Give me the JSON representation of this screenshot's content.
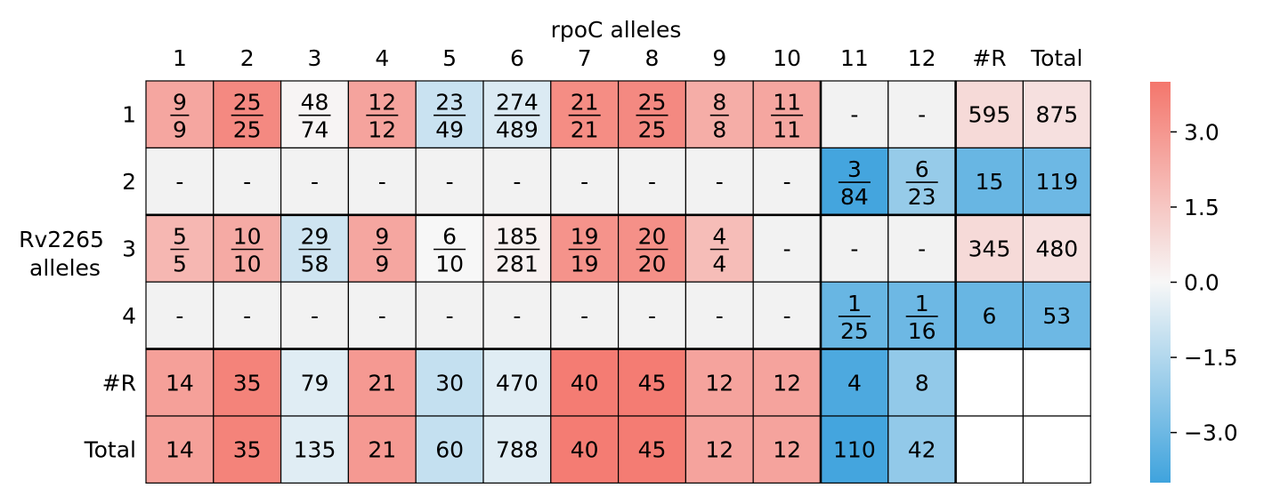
{
  "chart_data": {
    "type": "heatmap",
    "xlabel": "rpoC alleles",
    "ylabel_lines": [
      "Rv2265",
      "alleles"
    ],
    "x_categories": [
      "1",
      "2",
      "3",
      "4",
      "5",
      "6",
      "7",
      "8",
      "9",
      "10",
      "11",
      "12",
      "#R",
      "Total"
    ],
    "y_categories": [
      "1",
      "2",
      "3",
      "4",
      "#R",
      "Total"
    ],
    "cells": [
      [
        {
          "num": "9",
          "den": "9",
          "v": 2.5
        },
        {
          "num": "25",
          "den": "25",
          "v": 3.4
        },
        {
          "num": "48",
          "den": "74",
          "v": 0.1
        },
        {
          "num": "12",
          "den": "12",
          "v": 2.6
        },
        {
          "num": "23",
          "den": "49",
          "v": -1.0
        },
        {
          "num": "274",
          "den": "489",
          "v": -0.6
        },
        {
          "num": "21",
          "den": "21",
          "v": 3.3
        },
        {
          "num": "25",
          "den": "25",
          "v": 3.4
        },
        {
          "num": "8",
          "den": "8",
          "v": 2.3
        },
        {
          "num": "11",
          "den": "11",
          "v": 2.5
        },
        {
          "text": "-",
          "v": null
        },
        {
          "text": "-",
          "v": null
        },
        {
          "text": "595",
          "v": 0.9
        },
        {
          "text": "875",
          "v": 0.7
        }
      ],
      [
        {
          "text": "-",
          "v": null
        },
        {
          "text": "-",
          "v": null
        },
        {
          "text": "-",
          "v": null
        },
        {
          "text": "-",
          "v": null
        },
        {
          "text": "-",
          "v": null
        },
        {
          "text": "-",
          "v": null
        },
        {
          "text": "-",
          "v": null
        },
        {
          "text": "-",
          "v": null
        },
        {
          "text": "-",
          "v": null
        },
        {
          "text": "-",
          "v": null
        },
        {
          "num": "3",
          "den": "84",
          "v": -3.9
        },
        {
          "num": "6",
          "den": "23",
          "v": -2.1
        },
        {
          "text": "15",
          "v": -3.1
        },
        {
          "text": "119",
          "v": -3.0
        }
      ],
      [
        {
          "num": "5",
          "den": "5",
          "v": 2.0
        },
        {
          "num": "10",
          "den": "10",
          "v": 2.4
        },
        {
          "num": "29",
          "den": "58",
          "v": -0.9
        },
        {
          "num": "9",
          "den": "9",
          "v": 2.5
        },
        {
          "num": "6",
          "den": "10",
          "v": 0.0
        },
        {
          "num": "185",
          "den": "281",
          "v": 0.2
        },
        {
          "num": "19",
          "den": "19",
          "v": 3.1
        },
        {
          "num": "20",
          "den": "20",
          "v": 3.2
        },
        {
          "num": "4",
          "den": "4",
          "v": 1.8
        },
        {
          "text": "-",
          "v": null
        },
        {
          "text": "-",
          "v": null
        },
        {
          "text": "-",
          "v": null
        },
        {
          "text": "345",
          "v": 0.9
        },
        {
          "text": "480",
          "v": 0.7
        }
      ],
      [
        {
          "text": "-",
          "v": null
        },
        {
          "text": "-",
          "v": null
        },
        {
          "text": "-",
          "v": null
        },
        {
          "text": "-",
          "v": null
        },
        {
          "text": "-",
          "v": null
        },
        {
          "text": "-",
          "v": null
        },
        {
          "text": "-",
          "v": null
        },
        {
          "text": "-",
          "v": null
        },
        {
          "text": "-",
          "v": null
        },
        {
          "text": "-",
          "v": null
        },
        {
          "num": "1",
          "den": "25",
          "v": -3.1
        },
        {
          "num": "1",
          "den": "16",
          "v": -3.0
        },
        {
          "text": "6",
          "v": -3.1
        },
        {
          "text": "53",
          "v": -3.0
        }
      ],
      [
        {
          "text": "14",
          "v": 2.7
        },
        {
          "text": "35",
          "v": 3.6
        },
        {
          "text": "79",
          "v": -0.5
        },
        {
          "text": "21",
          "v": 2.9
        },
        {
          "text": "30",
          "v": -1.1
        },
        {
          "text": "470",
          "v": -0.5
        },
        {
          "text": "40",
          "v": 3.8
        },
        {
          "text": "45",
          "v": 3.8
        },
        {
          "text": "12",
          "v": 2.6
        },
        {
          "text": "12",
          "v": 2.6
        },
        {
          "text": "4",
          "v": -3.7
        },
        {
          "text": "8",
          "v": -2.2
        },
        {
          "text": "",
          "v": "blank"
        },
        {
          "text": "",
          "v": "blank"
        }
      ],
      [
        {
          "text": "14",
          "v": 2.7
        },
        {
          "text": "35",
          "v": 3.6
        },
        {
          "text": "135",
          "v": -0.5
        },
        {
          "text": "21",
          "v": 2.9
        },
        {
          "text": "60",
          "v": -1.1
        },
        {
          "text": "788",
          "v": -0.5
        },
        {
          "text": "40",
          "v": 3.8
        },
        {
          "text": "45",
          "v": 3.8
        },
        {
          "text": "12",
          "v": 2.6
        },
        {
          "text": "12",
          "v": 2.6
        },
        {
          "text": "110",
          "v": -3.9
        },
        {
          "text": "42",
          "v": -2.2
        },
        {
          "text": "",
          "v": "blank"
        },
        {
          "text": "",
          "v": "blank"
        }
      ]
    ],
    "colorbar": {
      "min": -4.0,
      "max": 4.0,
      "ticks": [
        3.0,
        1.5,
        0.0,
        -1.5,
        -3.0
      ],
      "tick_labels": [
        "3.0",
        "1.5",
        "0.0",
        "−1.5",
        "−3.0"
      ],
      "colors": {
        "low": "#3fa3dd",
        "mid": "#f7f7f7",
        "high": "#f4766c"
      }
    },
    "missing_color": "#f2f2f2",
    "blank_color": "#ffffff"
  }
}
